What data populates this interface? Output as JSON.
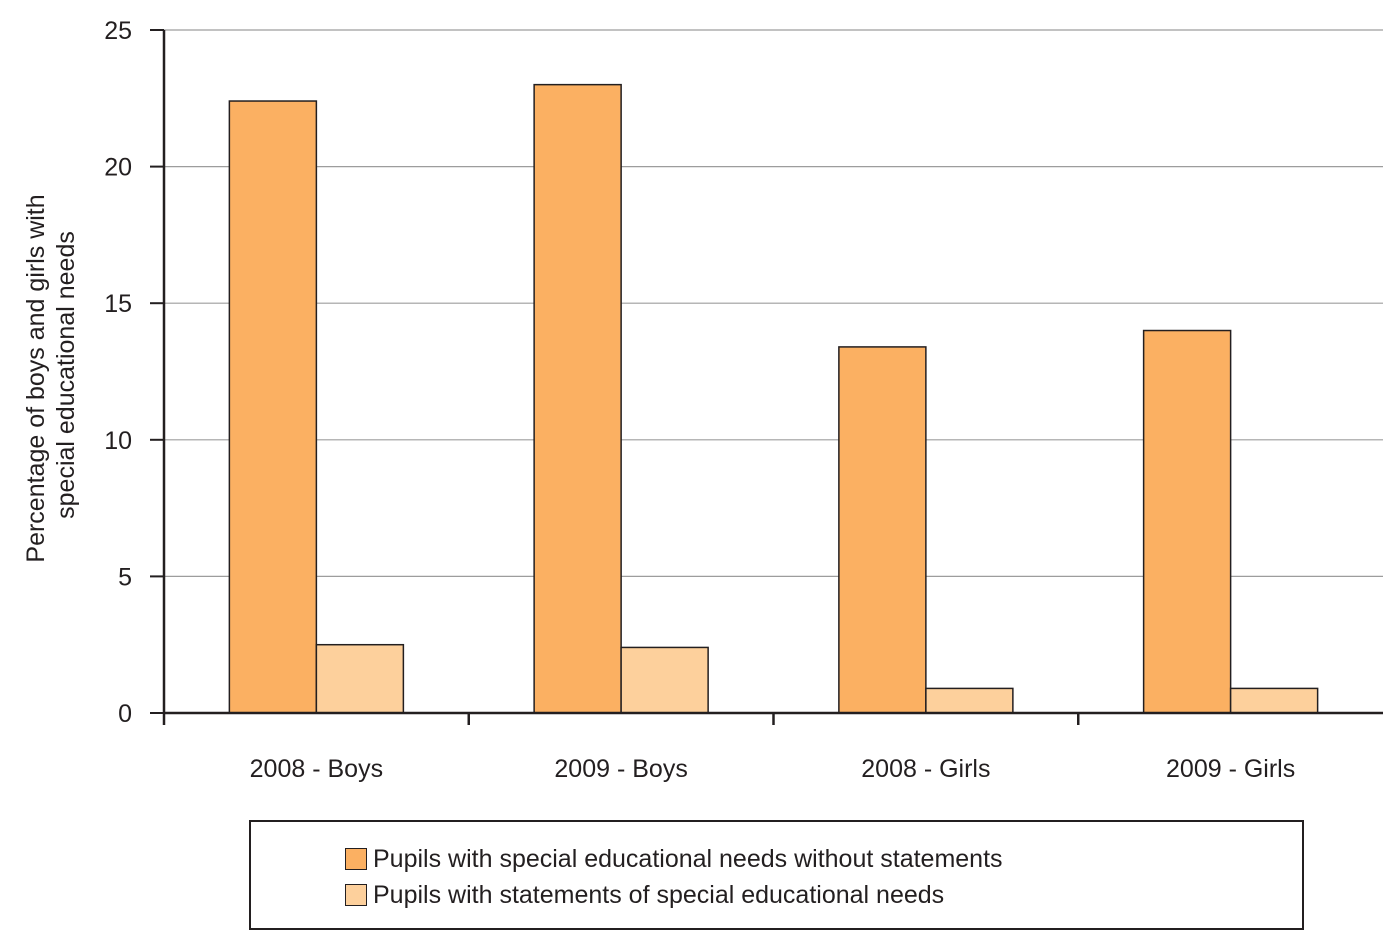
{
  "chart_data": {
    "type": "bar",
    "categories": [
      "2008 - Boys",
      "2009 - Boys",
      "2008 - Girls",
      "2009 - Girls"
    ],
    "series": [
      {
        "name": "Pupils with special educational needs without statements",
        "values": [
          22.4,
          23.0,
          13.4,
          14.0
        ],
        "color": "#fbb062"
      },
      {
        "name": "Pupils with statements of special educational needs",
        "values": [
          2.5,
          2.4,
          0.9,
          0.9
        ],
        "color": "#fdd09c"
      }
    ],
    "ylabel": "Percentage of boys and girls with special educational needs",
    "ylabel_lines": [
      "Percentage of boys and girls with",
      "special educational needs"
    ],
    "ylim": [
      0,
      25
    ],
    "yticks": [
      0,
      5,
      10,
      15,
      20,
      25
    ],
    "grid": true,
    "legend_position": "bottom"
  }
}
